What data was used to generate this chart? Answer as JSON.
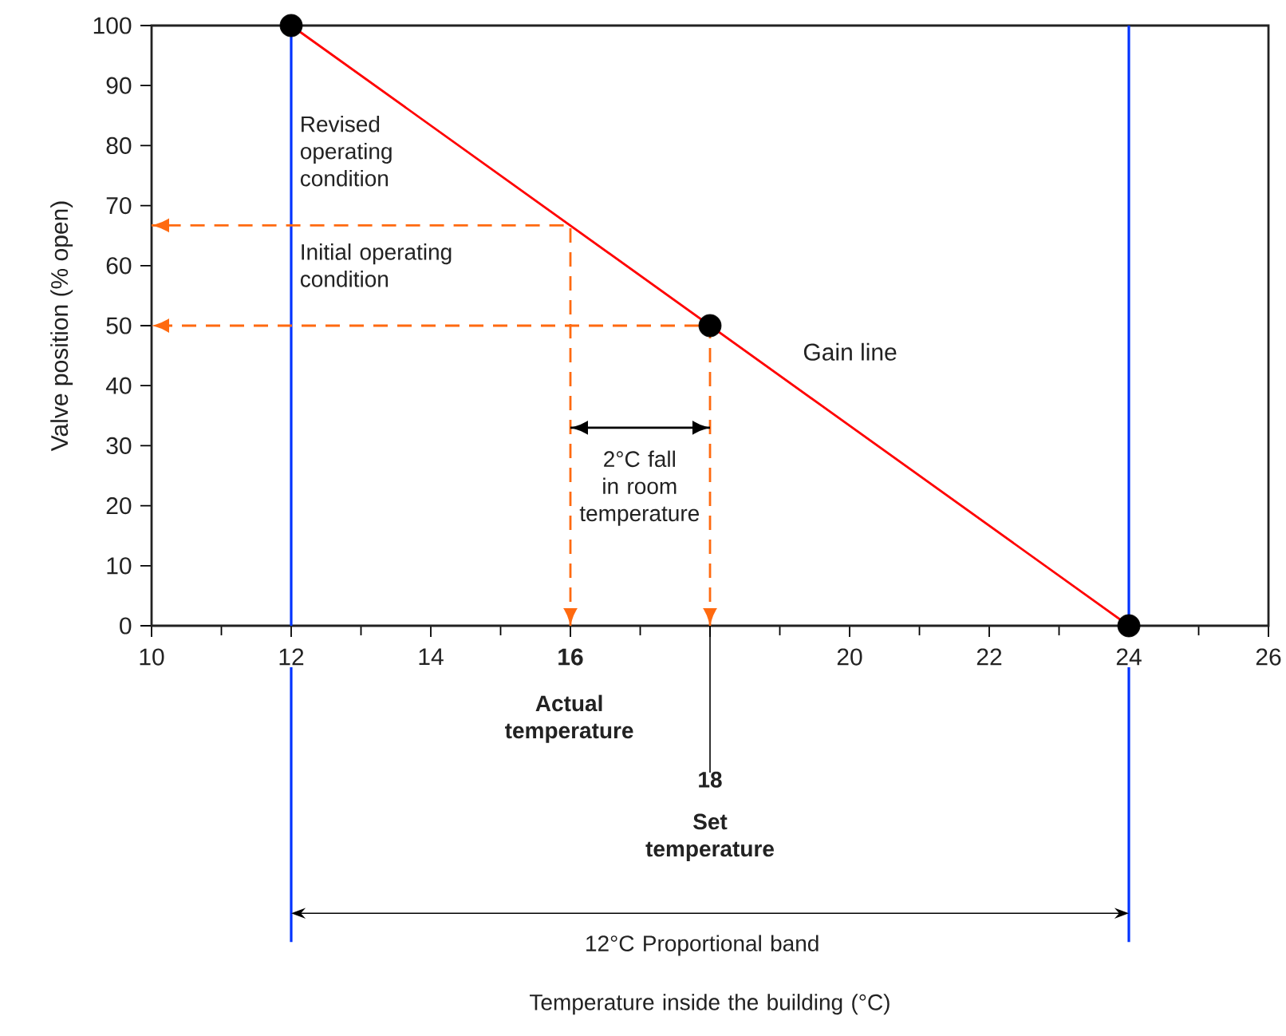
{
  "chart_data": {
    "type": "line",
    "marker": "none",
    "ylabel": "Valve position (% open)",
    "xlim": [
      10,
      26
    ],
    "ylim": [
      0,
      100
    ],
    "xticks": [
      10,
      12,
      14,
      {
        "value": 16,
        "label": "16"
      },
      {
        "value": 18,
        "label": null
      },
      20,
      22,
      24,
      26
    ],
    "yticks": [
      0,
      10,
      20,
      30,
      40,
      50,
      60,
      70,
      80,
      90,
      100
    ],
    "series": [
      {
        "name": "Gain line",
        "color": "#ff0000",
        "x": [
          12,
          24
        ],
        "values": [
          100,
          0
        ]
      },
      {
        "color": "#ff6a10",
        "line_style": "dashed",
        "x": [
          16,
          16,
          10
        ],
        "values": [
          0,
          66.7,
          66.7
        ]
      },
      {
        "color": "#ff6a10",
        "line_style": "dashed",
        "x": [
          18,
          18,
          10
        ],
        "values": [
          0,
          50,
          50
        ]
      },
      {
        "color": "#000000",
        "x": [
          16,
          18
        ],
        "values": [
          33,
          33
        ]
      },
      {
        "type": "scatter",
        "color": "#000000",
        "marker": "circle",
        "x": [
          12,
          18,
          24
        ],
        "values": [
          100,
          50,
          0
        ]
      }
    ],
    "ref_lines": [
      {
        "axis": "x",
        "value": 12,
        "color": "#0033ff"
      },
      {
        "axis": "x",
        "value": 24,
        "color": "#0033ff"
      }
    ],
    "annotations": [
      "Revised operating condition",
      "Initial operating condition",
      "2°C fall in room temperature",
      "Actual temperature",
      "18",
      "Set temperature",
      "12°C Proportional band",
      "Temperature inside the building (°C)"
    ]
  }
}
